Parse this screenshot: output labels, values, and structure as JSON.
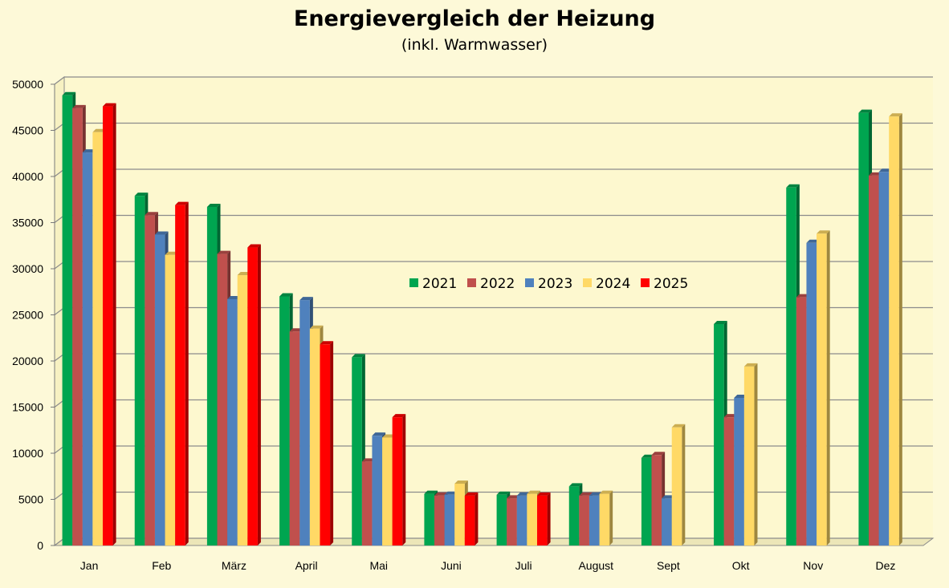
{
  "chart_data": {
    "type": "bar",
    "title": "Energievergleich der Heizung",
    "subtitle": "(inkl. Warmwasser)",
    "xlabel": "",
    "ylabel": "",
    "ylim": [
      0,
      50000
    ],
    "yticks": [
      0,
      5000,
      10000,
      15000,
      20000,
      25000,
      30000,
      35000,
      40000,
      45000,
      50000
    ],
    "grid": true,
    "legend_position": "center",
    "categories": [
      "Jan",
      "Feb",
      "März",
      "April",
      "Mai",
      "Juni",
      "Juli",
      "August",
      "Sept",
      "Okt",
      "Nov",
      "Dez"
    ],
    "series": [
      {
        "name": "2021",
        "color": "#00a550",
        "values": [
          48800,
          37900,
          36700,
          27000,
          20400,
          5600,
          5500,
          6400,
          9500,
          24000,
          38800,
          46900
        ]
      },
      {
        "name": "2022",
        "color": "#c0504d",
        "values": [
          47400,
          35800,
          31600,
          23200,
          9100,
          5400,
          5100,
          5400,
          9800,
          13900,
          26900,
          40100
        ]
      },
      {
        "name": "2023",
        "color": "#4f81bd",
        "values": [
          42600,
          33700,
          26700,
          26600,
          11900,
          5500,
          5400,
          5400,
          5100,
          16000,
          32800,
          40500
        ]
      },
      {
        "name": "2024",
        "color": "#ffd966",
        "values": [
          44800,
          31500,
          29300,
          23500,
          11700,
          6700,
          5600,
          5600,
          12800,
          19400,
          33800,
          46500
        ]
      },
      {
        "name": "2025",
        "color": "#ff0000",
        "values": [
          47600,
          36900,
          32300,
          21800,
          13900,
          5400,
          5400,
          null,
          null,
          null,
          null,
          null
        ]
      }
    ]
  }
}
